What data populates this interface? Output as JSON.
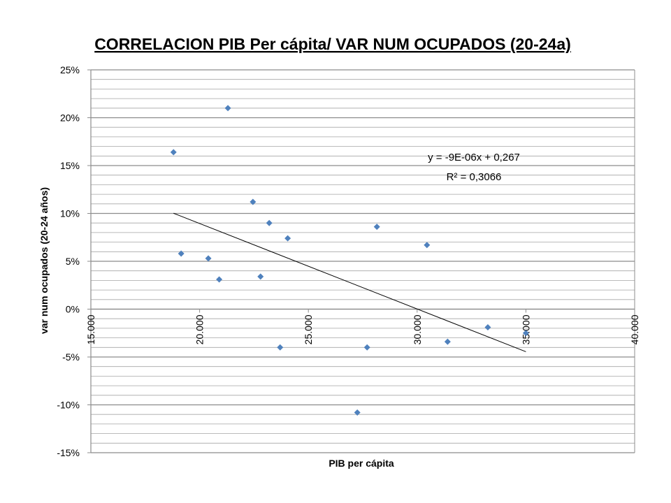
{
  "chart_data": {
    "type": "scatter",
    "title": "CORRELACION PIB Per cápita/ VAR NUM OCUPADOS  (20-24a)",
    "xlabel": "PIB per cápita",
    "ylabel": "var num ocupados (20-24 años)",
    "xlim": [
      15000,
      40000
    ],
    "ylim": [
      -0.15,
      0.25
    ],
    "x_ticks": [
      15000,
      20000,
      25000,
      30000,
      35000,
      40000
    ],
    "x_tick_labels": [
      "15.000",
      "20.000",
      "25.000",
      "30.000",
      "35.000",
      "40.000"
    ],
    "y_ticks": [
      -0.15,
      -0.1,
      -0.05,
      0,
      0.05,
      0.1,
      0.15,
      0.2,
      0.25
    ],
    "y_tick_labels": [
      "-15%",
      "-10%",
      "-5%",
      "0%",
      "5%",
      "10%",
      "15%",
      "20%",
      "25%"
    ],
    "minor_gridline_step": 0.01,
    "points": [
      {
        "x": 18800,
        "y": 0.164
      },
      {
        "x": 19150,
        "y": 0.058
      },
      {
        "x": 20400,
        "y": 0.053
      },
      {
        "x": 20900,
        "y": 0.031
      },
      {
        "x": 21300,
        "y": 0.21
      },
      {
        "x": 22450,
        "y": 0.112
      },
      {
        "x": 22800,
        "y": 0.034
      },
      {
        "x": 23200,
        "y": 0.09
      },
      {
        "x": 23700,
        "y": -0.04
      },
      {
        "x": 24050,
        "y": 0.074
      },
      {
        "x": 27250,
        "y": -0.108
      },
      {
        "x": 27700,
        "y": -0.04
      },
      {
        "x": 28150,
        "y": 0.086
      },
      {
        "x": 30450,
        "y": 0.067
      },
      {
        "x": 31400,
        "y": -0.034
      },
      {
        "x": 33250,
        "y": -0.019
      },
      {
        "x": 35000,
        "y": -0.025
      }
    ],
    "trendline": {
      "equation": "y = -9E-06x + 0,267",
      "r_squared": "R² = 0,3066",
      "x_start": 18800,
      "y_start": 0.1002,
      "x_end": 35000,
      "y_end": -0.0445
    },
    "marker_color": "#4f81bd",
    "gridline_color": "#a6a6a6"
  }
}
